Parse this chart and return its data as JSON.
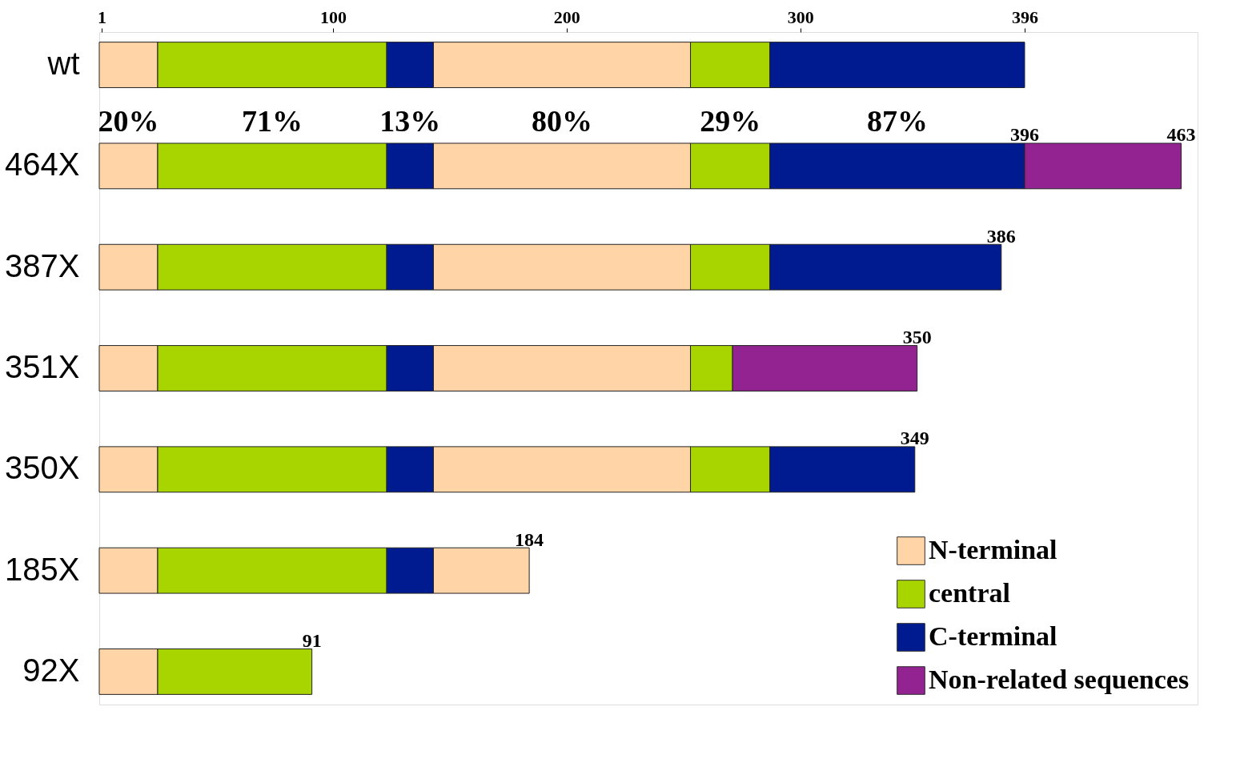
{
  "chart_data": {
    "type": "bar",
    "orientation": "horizontal",
    "stacked": true,
    "categories": [
      "wt",
      "464X",
      "387X",
      "351X",
      "350X",
      "185X",
      "92X"
    ],
    "series": [
      {
        "name": "N-terminal",
        "color": "#ffd5a8",
        "values": [
          25,
          25,
          25,
          25,
          25,
          25,
          25
        ]
      },
      {
        "name": "central",
        "color": "#a8d400",
        "values": [
          98,
          98,
          98,
          98,
          98,
          98,
          66
        ]
      },
      {
        "name": "C-terminal",
        "color": "#001a90",
        "values": [
          20,
          20,
          20,
          20,
          20,
          20,
          null
        ]
      },
      {
        "color": "#ffd5a8",
        "values": [
          110,
          110,
          110,
          110,
          110,
          41,
          null
        ]
      },
      {
        "color": "#a8d400",
        "values": [
          34,
          34,
          34,
          18,
          34,
          null,
          null
        ]
      },
      {
        "color": "#001a90",
        "values": [
          109,
          109,
          99,
          null,
          62,
          null,
          null
        ]
      },
      {
        "name": "Non-related sequences",
        "color": "#922390",
        "values": [
          null,
          67,
          null,
          79,
          null,
          null,
          null
        ]
      }
    ],
    "xlim": [
      0,
      470
    ],
    "xticks": [
      1,
      100,
      200,
      300,
      396
    ],
    "grid": false,
    "legend": "bottom right",
    "annotations": [
      "20%",
      "71%",
      "13%",
      "80%",
      "29%",
      "87%",
      {
        "text": "396",
        "x": 396,
        "y": "464X"
      },
      {
        "text": "463",
        "x": 463,
        "y": "464X"
      },
      {
        "text": "386",
        "x": 386,
        "y": "387X"
      },
      {
        "text": "350",
        "x": 350,
        "y": "351X"
      },
      {
        "text": "349",
        "x": 349,
        "y": "350X"
      },
      {
        "text": "184",
        "x": 184,
        "y": "185X"
      },
      {
        "text": "91",
        "x": 91,
        "y": "92X"
      }
    ]
  }
}
